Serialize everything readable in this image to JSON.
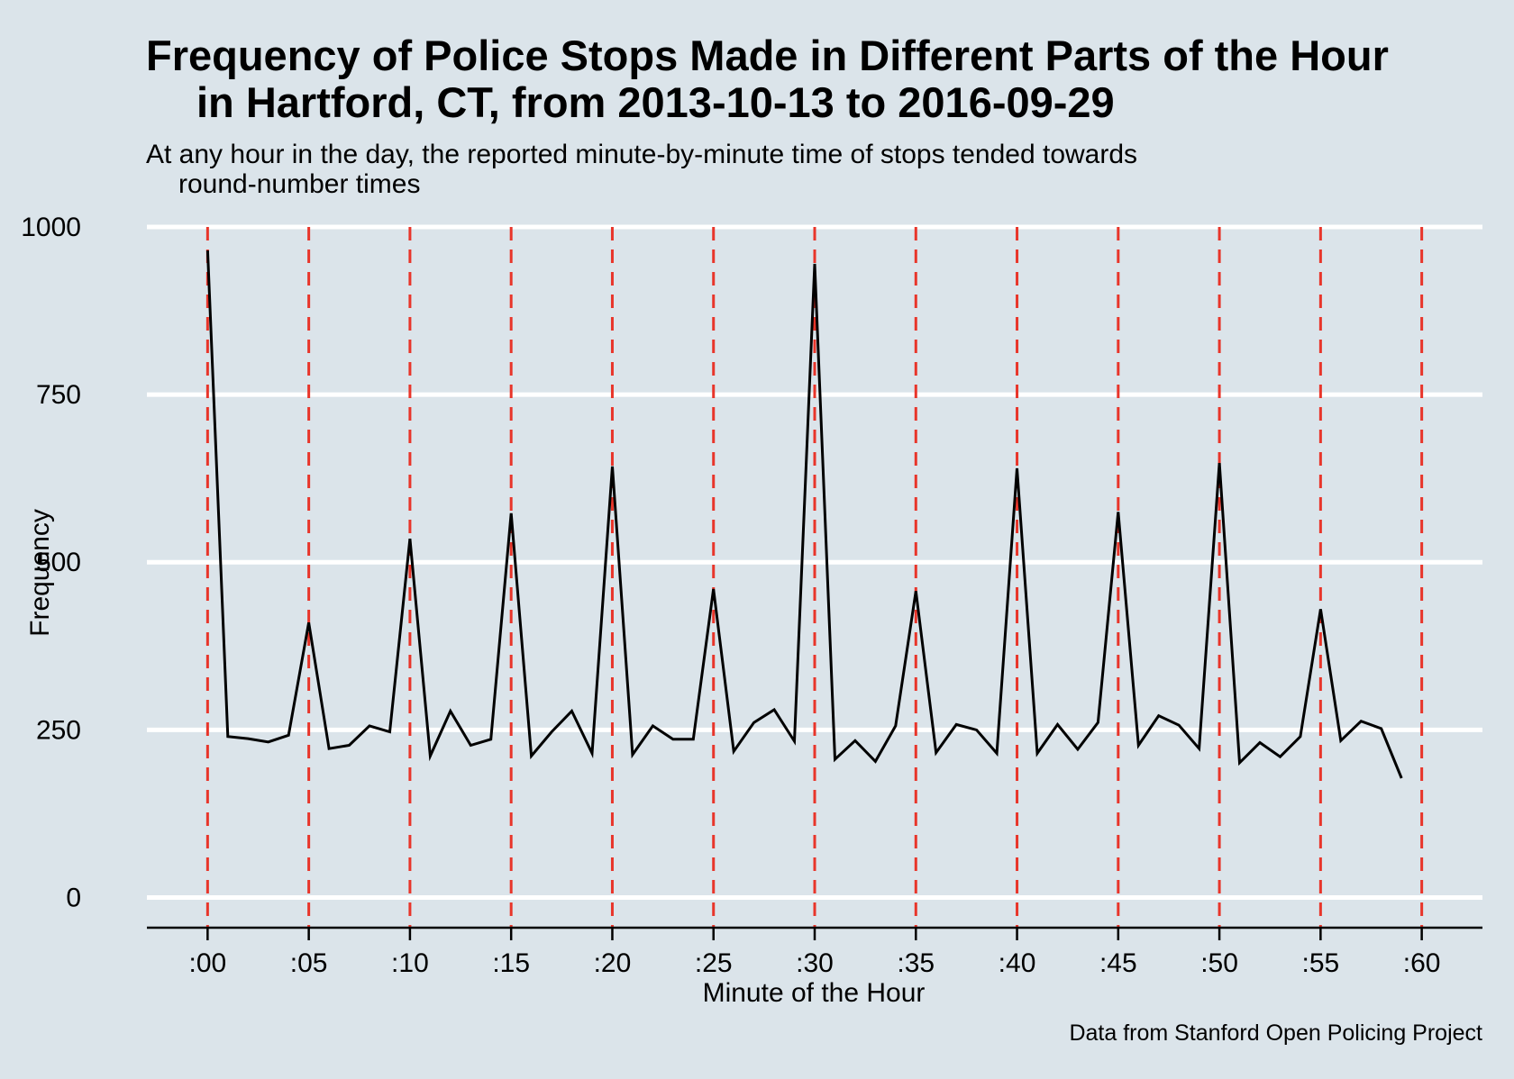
{
  "chart_data": {
    "type": "line",
    "title_lines": [
      "Frequency of Police Stops Made in Different Parts of the Hour",
      "in Hartford, CT, from 2013-10-13 to 2016-09-29"
    ],
    "subtitle_lines": [
      "At any hour in the day, the reported minute-by-minute time of stops tended towards",
      "round-number times"
    ],
    "xlabel": "Minute of the Hour",
    "ylabel": "Frequency",
    "caption": "Data from Stanford Open Policing Project",
    "xlim": [
      -3,
      63
    ],
    "ylim": [
      -45,
      1000
    ],
    "x_ticks": [
      0,
      5,
      10,
      15,
      20,
      25,
      30,
      35,
      40,
      45,
      50,
      55,
      60
    ],
    "x_tick_labels": [
      ":00",
      ":05",
      ":10",
      ":15",
      ":20",
      ":25",
      ":30",
      ":35",
      ":40",
      ":45",
      ":50",
      ":55",
      ":60"
    ],
    "y_ticks": [
      0,
      250,
      500,
      750,
      1000
    ],
    "y_tick_labels": [
      "0",
      "250",
      "500",
      "750",
      "1000"
    ],
    "grid": "horizontal",
    "reference_lines": {
      "x": [
        0,
        5,
        10,
        15,
        20,
        25,
        30,
        35,
        40,
        45,
        50,
        55,
        60
      ],
      "style": "dashed",
      "color": "#e8352a"
    },
    "line_color": "#000000",
    "background_color": "#dbe4ea",
    "series": [
      {
        "x": [
          0,
          1,
          2,
          3,
          4,
          5,
          6,
          7,
          8,
          9,
          10,
          11,
          12,
          13,
          14,
          15,
          16,
          17,
          18,
          19,
          20,
          21,
          22,
          23,
          24,
          25,
          26,
          27,
          28,
          29,
          30,
          31,
          32,
          33,
          34,
          35,
          36,
          37,
          38,
          39,
          40,
          41,
          42,
          43,
          44,
          45,
          46,
          47,
          48,
          49,
          50,
          51,
          52,
          53,
          54,
          55,
          56,
          57,
          58,
          59
        ],
        "values": [
          965,
          240,
          237,
          232,
          242,
          410,
          222,
          227,
          256,
          247,
          535,
          211,
          278,
          227,
          236,
          573,
          211,
          247,
          278,
          215,
          643,
          213,
          256,
          236,
          236,
          460,
          218,
          261,
          280,
          233,
          945,
          206,
          234,
          203,
          256,
          457,
          216,
          258,
          250,
          215,
          640,
          215,
          258,
          221,
          261,
          575,
          227,
          271,
          257,
          222,
          648,
          201,
          231,
          210,
          240,
          430,
          234,
          263,
          252,
          178
        ]
      }
    ]
  }
}
